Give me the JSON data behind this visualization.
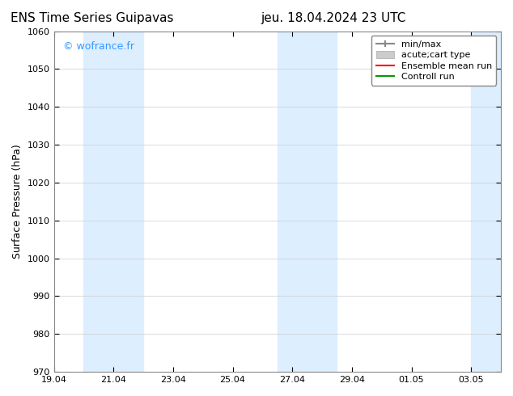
{
  "title_left": "ENS Time Series Guipavas",
  "title_right": "jeu. 18.04.2024 23 UTC",
  "ylabel": "Surface Pressure (hPa)",
  "watermark": "© wofrance.fr",
  "watermark_color": "#3399ff",
  "ylim": [
    970,
    1060
  ],
  "yticks": [
    970,
    980,
    990,
    1000,
    1010,
    1020,
    1030,
    1040,
    1050,
    1060
  ],
  "xtick_labels": [
    "19.04",
    "21.04",
    "23.04",
    "25.04",
    "27.04",
    "29.04",
    "01.05",
    "03.05"
  ],
  "xtick_positions": [
    0,
    2,
    4,
    6,
    8,
    10,
    12,
    14
  ],
  "xmin": 0,
  "xmax": 15,
  "shaded_bands": [
    {
      "xmin": 1.0,
      "xmax": 3.0
    },
    {
      "xmin": 7.5,
      "xmax": 9.5
    },
    {
      "xmin": 14.0,
      "xmax": 15.0
    }
  ],
  "shaded_color": "#ddeeff",
  "background_color": "#ffffff",
  "grid_color": "#cccccc",
  "legend_entries": [
    {
      "label": "min/max",
      "color": "#aaaaaa",
      "type": "errorbar"
    },
    {
      "label": "acute;cart type",
      "color": "#cccccc",
      "type": "bar"
    },
    {
      "label": "Ensemble mean run",
      "color": "#ff0000",
      "type": "line"
    },
    {
      "label": "Controll run",
      "color": "#009900",
      "type": "line"
    }
  ],
  "title_fontsize": 11,
  "label_fontsize": 9,
  "tick_fontsize": 8,
  "legend_fontsize": 8
}
